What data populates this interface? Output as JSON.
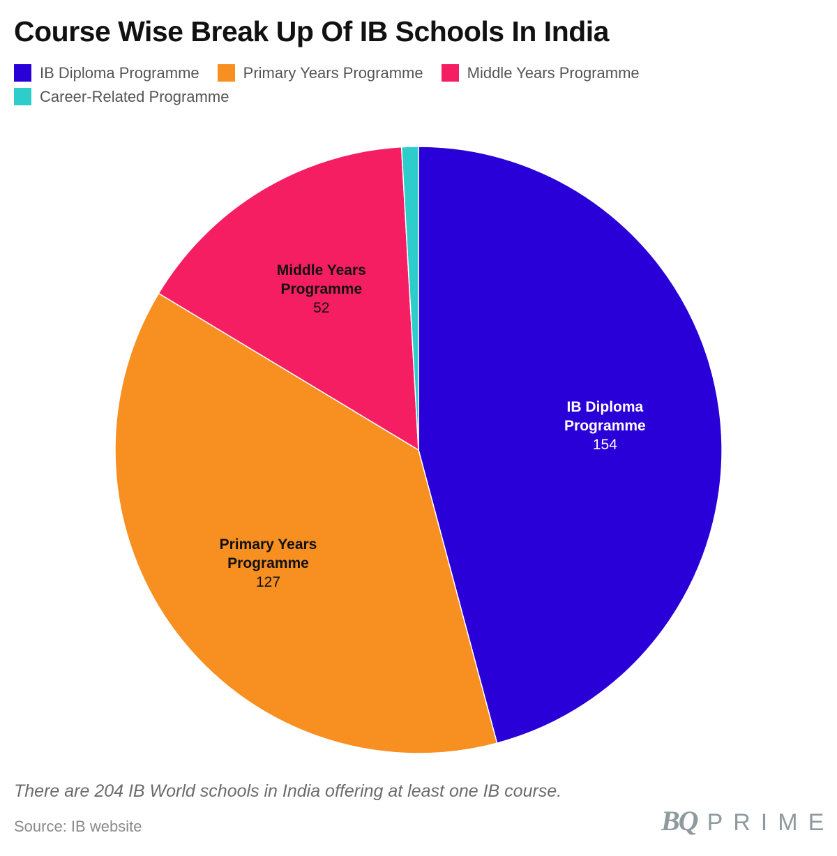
{
  "title": "Course Wise Break Up Of IB Schools In India",
  "legend": [
    {
      "label": "IB Diploma Programme",
      "color": "#2a00d8"
    },
    {
      "label": "Primary Years Programme",
      "color": "#f78f21"
    },
    {
      "label": "Middle Years Programme",
      "color": "#f61e63"
    },
    {
      "label": "Career-Related Programme",
      "color": "#2ccdcb"
    }
  ],
  "chart_data": {
    "type": "pie",
    "title": "Course Wise Break Up Of IB Schools In India",
    "slices": [
      {
        "label": "IB Diploma Programme",
        "value": 154,
        "color": "#2a00d8",
        "label_lines": [
          "IB Diploma",
          "Programme"
        ],
        "label_color": "#ffffff"
      },
      {
        "label": "Primary Years Programme",
        "value": 127,
        "color": "#f78f21",
        "label_lines": [
          "Primary Years",
          "Programme"
        ],
        "label_color": "#111111"
      },
      {
        "label": "Middle Years Programme",
        "value": 52,
        "color": "#f61e63",
        "label_lines": [
          "Middle Years",
          "Programme"
        ],
        "label_color": "#111111"
      },
      {
        "label": "Career-Related Programme",
        "value": 3,
        "color": "#2ccdcb",
        "label_lines": [],
        "label_color": "#111111"
      }
    ],
    "start": "12 o'clock",
    "direction": "clockwise"
  },
  "note": "There are 204 IB World schools in India offering at least one IB course.",
  "source": "Source: IB website",
  "brand": {
    "bq": "BQ",
    "prime": "PRIME"
  }
}
